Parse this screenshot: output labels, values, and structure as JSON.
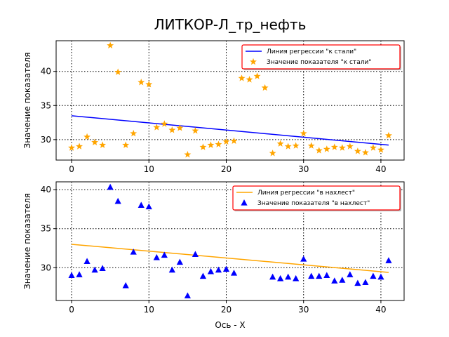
{
  "figure": {
    "title": "ЛИТКОР-Л_тр_нефть",
    "xlabel": "Ось - X"
  },
  "chart_data": [
    {
      "type": "scatter",
      "ylabel": "Значение показателя",
      "xlim": [
        -2,
        43
      ],
      "ylim": [
        27,
        44.5
      ],
      "xticks": [
        0,
        10,
        20,
        30,
        40
      ],
      "yticks": [
        30,
        35,
        40
      ],
      "grid": true,
      "legend_position": "top-right",
      "regression": {
        "name": "Линия регрессии \"к стали\"",
        "x": [
          0,
          41
        ],
        "y": [
          33.5,
          29.2
        ],
        "color": "#0000ff"
      },
      "series": [
        {
          "name": "Значение показателя \"к стали\"",
          "marker": "star",
          "color": "#ffa500",
          "x": [
            0,
            1,
            2,
            3,
            4,
            5,
            6,
            7,
            8,
            9,
            10,
            11,
            12,
            13,
            14,
            15,
            16,
            17,
            18,
            19,
            20,
            21,
            22,
            23,
            24,
            25,
            26,
            27,
            28,
            29,
            30,
            31,
            32,
            33,
            34,
            35,
            36,
            37,
            38,
            39,
            40,
            41
          ],
          "y": [
            28.8,
            29.0,
            30.4,
            29.6,
            29.2,
            43.8,
            39.9,
            29.2,
            30.9,
            38.4,
            38.1,
            31.8,
            32.3,
            31.4,
            31.7,
            27.8,
            31.3,
            28.9,
            29.2,
            29.3,
            29.7,
            29.8,
            39.0,
            38.8,
            39.3,
            37.6,
            28.0,
            29.4,
            29.0,
            29.1,
            30.9,
            29.1,
            28.4,
            28.6,
            28.9,
            28.8,
            29.0,
            28.3,
            28.1,
            28.8,
            28.5,
            30.6
          ]
        }
      ]
    },
    {
      "type": "scatter",
      "ylabel": "Значение показателя",
      "xlim": [
        -2,
        43
      ],
      "ylim": [
        25.8,
        41
      ],
      "xticks": [
        0,
        10,
        20,
        30,
        40
      ],
      "yticks": [
        30,
        35,
        40
      ],
      "grid": true,
      "legend_position": "top-right",
      "regression": {
        "name": "Линия регрессии \"в нахлест\"",
        "x": [
          0,
          41
        ],
        "y": [
          33.0,
          29.4
        ],
        "color": "#ffa500"
      },
      "series": [
        {
          "name": "Значение показателя \"в нахлест\"",
          "marker": "triangle",
          "color": "#0000ff",
          "x": [
            0,
            1,
            2,
            3,
            4,
            5,
            6,
            7,
            8,
            9,
            10,
            11,
            12,
            13,
            14,
            15,
            16,
            17,
            18,
            19,
            20,
            21,
            26,
            27,
            28,
            29,
            30,
            31,
            32,
            33,
            34,
            35,
            36,
            37,
            38,
            39,
            40,
            41
          ],
          "y": [
            29.0,
            29.1,
            30.8,
            29.7,
            29.9,
            40.3,
            38.5,
            27.7,
            32.0,
            38.0,
            37.8,
            31.3,
            31.6,
            29.7,
            30.7,
            26.4,
            31.7,
            28.9,
            29.5,
            29.7,
            29.8,
            29.3,
            28.8,
            28.6,
            28.8,
            28.6,
            31.1,
            28.9,
            28.9,
            29.0,
            28.3,
            28.4,
            29.1,
            28.0,
            28.1,
            28.9,
            28.8,
            30.9
          ]
        }
      ]
    }
  ]
}
